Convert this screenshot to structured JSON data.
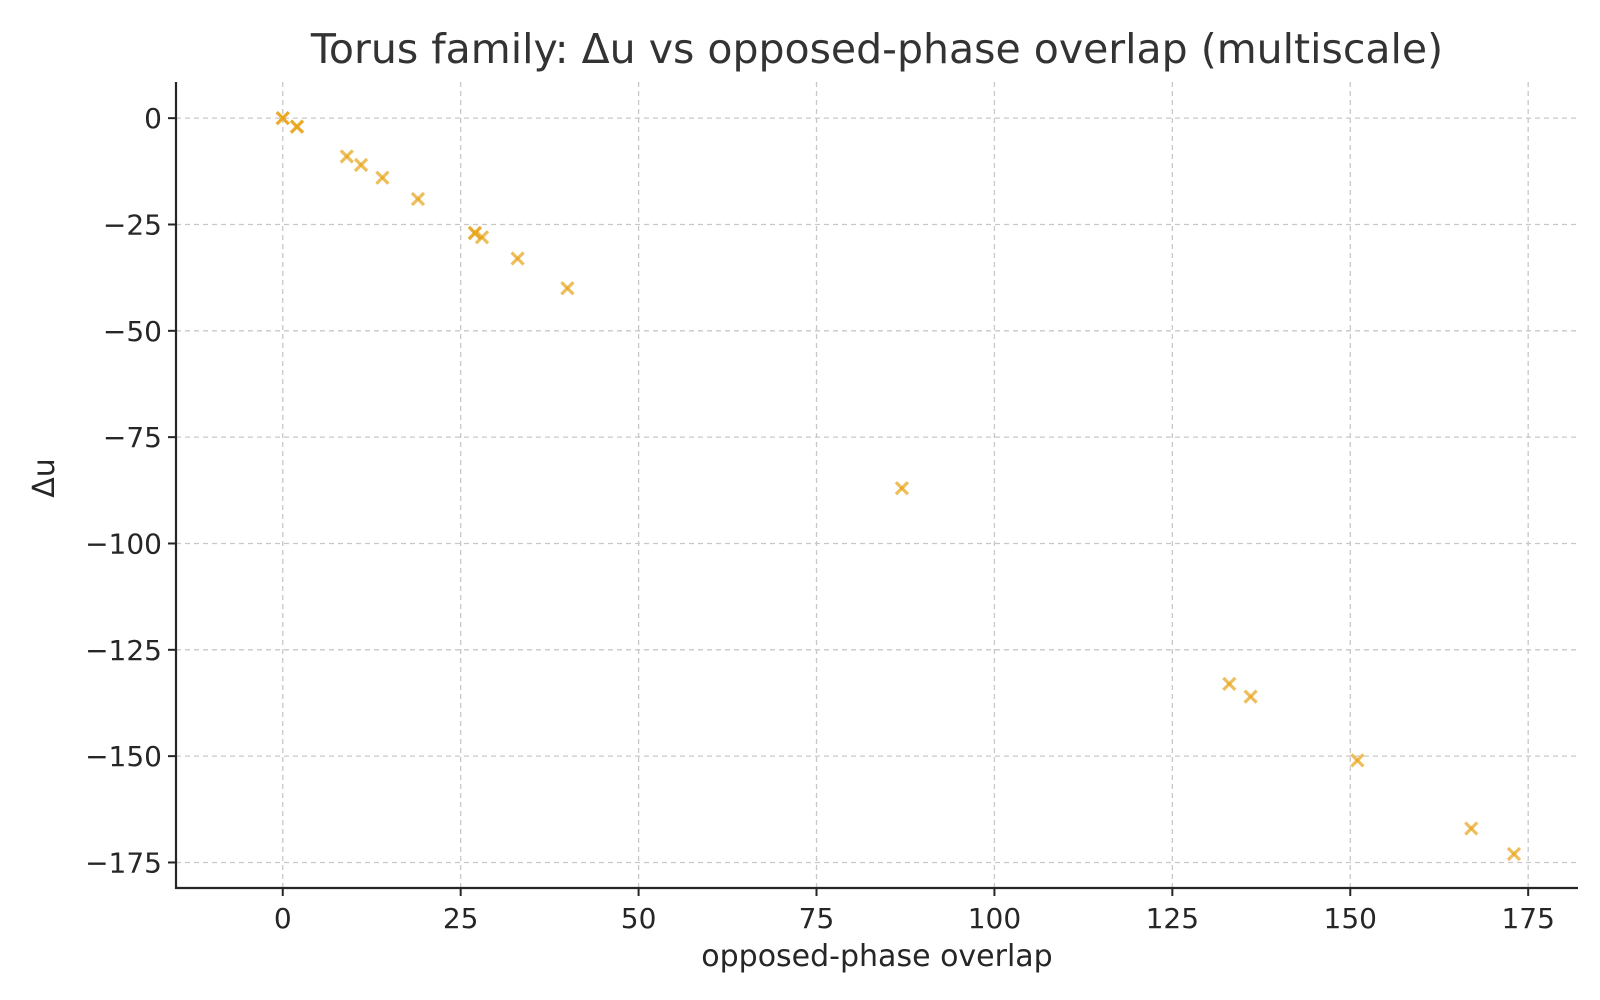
{
  "chart_data": {
    "type": "scatter",
    "title": "Torus family: Δu vs opposed-phase overlap (multiscale)",
    "xlabel": "opposed-phase overlap",
    "ylabel": "Δu",
    "xlim": [
      -15,
      182
    ],
    "ylim": [
      -181,
      8.5
    ],
    "xticks": [
      0,
      25,
      50,
      75,
      100,
      125,
      150,
      175
    ],
    "xtick_labels": [
      "0",
      "25",
      "50",
      "75",
      "100",
      "125",
      "150",
      "175"
    ],
    "yticks": [
      0,
      -25,
      -50,
      -75,
      -100,
      -125,
      -150,
      -175
    ],
    "ytick_labels": [
      "0",
      "−25",
      "−50",
      "−75",
      "−100",
      "−125",
      "−150",
      "−175"
    ],
    "grid": true,
    "marker": "x",
    "color": "#E8A317",
    "points": [
      {
        "x": 0,
        "y": 0
      },
      {
        "x": 0,
        "y": 0
      },
      {
        "x": 2,
        "y": -2
      },
      {
        "x": 2,
        "y": -2
      },
      {
        "x": 9,
        "y": -9
      },
      {
        "x": 11,
        "y": -11
      },
      {
        "x": 14,
        "y": -14
      },
      {
        "x": 19,
        "y": -19
      },
      {
        "x": 27,
        "y": -27
      },
      {
        "x": 27,
        "y": -27
      },
      {
        "x": 28,
        "y": -28
      },
      {
        "x": 33,
        "y": -33
      },
      {
        "x": 40,
        "y": -40
      },
      {
        "x": 87,
        "y": -87
      },
      {
        "x": 133,
        "y": -133
      },
      {
        "x": 136,
        "y": -136
      },
      {
        "x": 151,
        "y": -151
      },
      {
        "x": 167,
        "y": -167
      },
      {
        "x": 173,
        "y": -173
      }
    ]
  }
}
